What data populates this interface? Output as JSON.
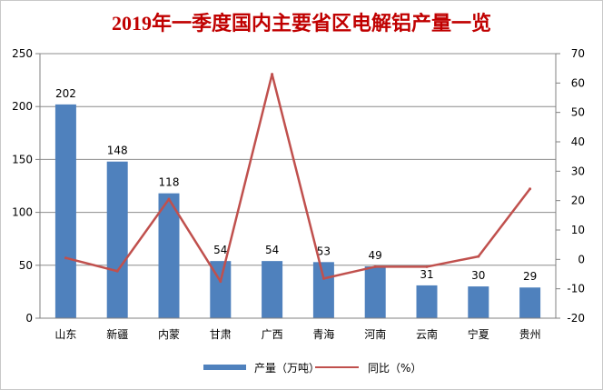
{
  "chart_data": {
    "type": "bar",
    "title": "2019年一季度国内主要省区电解铝产量一览",
    "categories": [
      "山东",
      "新疆",
      "内蒙",
      "甘肃",
      "广西",
      "青海",
      "河南",
      "云南",
      "宁夏",
      "贵州"
    ],
    "series": [
      {
        "name": "产量（万吨）",
        "type": "bar",
        "axis": "left",
        "color": "#4f81bd",
        "values": [
          202,
          148,
          118,
          54,
          54,
          53,
          49,
          31,
          30,
          29
        ],
        "data_labels": [
          "202",
          "148",
          "118",
          "54",
          "54",
          "53",
          "49",
          "31",
          "30",
          "29"
        ]
      },
      {
        "name": "同比（%）",
        "type": "line",
        "axis": "right",
        "color": "#c0504d",
        "values": [
          0.5,
          -4,
          20.5,
          -7.5,
          63,
          -6.5,
          -2.5,
          -2.5,
          1,
          24
        ]
      }
    ],
    "y_left": {
      "min": 0,
      "max": 250,
      "ticks": [
        "0",
        "50",
        "100",
        "150",
        "200",
        "250"
      ]
    },
    "y_right": {
      "min": -20,
      "max": 70,
      "ticks": [
        "-20",
        "-10",
        "0",
        "10",
        "20",
        "30",
        "40",
        "50",
        "60",
        "70"
      ]
    },
    "grid": true,
    "legend_position": "bottom"
  }
}
